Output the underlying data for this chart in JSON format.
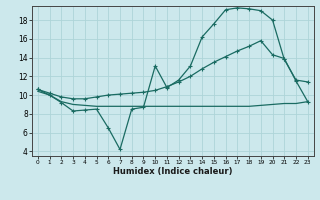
{
  "xlabel": "Humidex (Indice chaleur)",
  "bg_color": "#cce8ec",
  "line_color": "#1a6b62",
  "grid_color": "#aed4d8",
  "ylim": [
    3.5,
    19.5
  ],
  "xlim": [
    -0.5,
    23.5
  ],
  "yticks": [
    4,
    6,
    8,
    10,
    12,
    14,
    16,
    18
  ],
  "xticks": [
    0,
    1,
    2,
    3,
    4,
    5,
    6,
    7,
    8,
    9,
    10,
    11,
    12,
    13,
    14,
    15,
    16,
    17,
    18,
    19,
    20,
    21,
    22,
    23
  ],
  "line1_x": [
    0,
    1,
    2,
    3,
    4,
    5,
    6,
    7,
    8,
    9,
    10,
    11,
    12,
    13,
    14,
    15,
    16,
    17,
    18,
    19,
    20,
    21,
    22,
    23
  ],
  "line1_y": [
    10.6,
    10.0,
    9.2,
    8.3,
    8.4,
    8.5,
    6.5,
    4.2,
    8.5,
    8.7,
    13.1,
    10.8,
    11.6,
    13.1,
    16.2,
    17.6,
    19.1,
    19.3,
    19.2,
    19.0,
    18.0,
    13.8,
    11.6,
    11.4
  ],
  "line2_x": [
    0,
    1,
    2,
    3,
    4,
    5,
    6,
    7,
    8,
    9,
    10,
    11,
    12,
    13,
    14,
    15,
    16,
    17,
    18,
    19,
    20,
    21,
    22,
    23
  ],
  "line2_y": [
    10.6,
    10.2,
    9.8,
    9.6,
    9.6,
    9.8,
    10.0,
    10.1,
    10.2,
    10.3,
    10.5,
    10.9,
    11.4,
    12.0,
    12.8,
    13.5,
    14.1,
    14.7,
    15.2,
    15.8,
    14.3,
    13.9,
    11.5,
    9.3
  ],
  "line3_x": [
    0,
    1,
    2,
    3,
    4,
    5,
    6,
    7,
    8,
    9,
    10,
    11,
    12,
    13,
    14,
    15,
    16,
    17,
    18,
    19,
    20,
    21,
    22,
    23
  ],
  "line3_y": [
    10.4,
    10.0,
    9.3,
    9.0,
    8.9,
    8.8,
    8.8,
    8.8,
    8.8,
    8.8,
    8.8,
    8.8,
    8.8,
    8.8,
    8.8,
    8.8,
    8.8,
    8.8,
    8.8,
    8.9,
    9.0,
    9.1,
    9.1,
    9.3
  ],
  "figwidth": 3.2,
  "figheight": 2.0,
  "dpi": 100
}
